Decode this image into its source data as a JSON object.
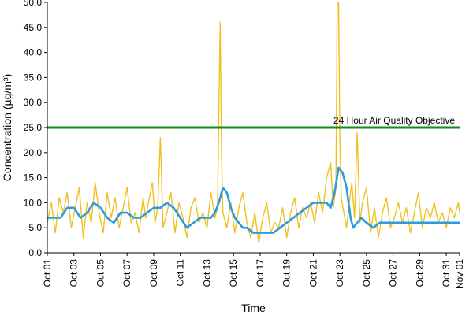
{
  "chart_data": {
    "type": "line",
    "title": "",
    "xlabel": "Time",
    "ylabel": "Concentration (µg/m³)",
    "ylim": [
      0,
      50
    ],
    "yticks": [
      "0.0",
      "5.0",
      "10.0",
      "15.0",
      "20.0",
      "25.0",
      "30.0",
      "35.0",
      "40.0",
      "45.0",
      "50.0"
    ],
    "xlim": [
      "2023-10-01",
      "2023-11-01"
    ],
    "xticks": [
      "Oct 01",
      "Oct 03",
      "Oct 05",
      "Oct 07",
      "Oct 09",
      "Oct 11",
      "Oct 13",
      "Oct 15",
      "Oct 17",
      "Oct 19",
      "Oct 21",
      "Oct 23",
      "Oct 25",
      "Oct 27",
      "Oct 29",
      "Oct 31",
      "Nov 01"
    ],
    "xtick_day_index": [
      0,
      2,
      4,
      6,
      8,
      10,
      12,
      14,
      16,
      18,
      20,
      22,
      24,
      26,
      28,
      30,
      31
    ],
    "grid": false,
    "legend": "none",
    "objective": {
      "label": "24 Hour Air Quality Objective",
      "value": 25,
      "color": "#1a8a1a"
    },
    "series": [
      {
        "color": "#f0c020",
        "x_day": [
          0.0,
          0.3,
          0.6,
          0.9,
          1.2,
          1.5,
          1.8,
          2.1,
          2.4,
          2.7,
          3.0,
          3.3,
          3.6,
          3.9,
          4.2,
          4.5,
          4.8,
          5.1,
          5.4,
          5.7,
          6.0,
          6.3,
          6.6,
          6.9,
          7.2,
          7.4,
          7.6,
          7.9,
          8.1,
          8.3,
          8.5,
          8.7,
          9.0,
          9.3,
          9.6,
          9.9,
          10.2,
          10.5,
          10.8,
          11.1,
          11.4,
          11.7,
          12.0,
          12.3,
          12.6,
          12.8,
          12.9,
          13.0,
          13.1,
          13.2,
          13.5,
          13.8,
          14.1,
          14.4,
          14.7,
          15.0,
          15.3,
          15.6,
          15.9,
          16.2,
          16.5,
          16.8,
          17.1,
          17.4,
          17.7,
          18.0,
          18.3,
          18.6,
          18.9,
          19.2,
          19.5,
          19.8,
          20.1,
          20.4,
          20.7,
          21.0,
          21.3,
          21.5,
          21.7,
          21.8,
          21.9,
          22.0,
          22.1,
          22.3,
          22.5,
          22.7,
          22.9,
          23.1,
          23.3,
          23.5,
          23.7,
          24.0,
          24.3,
          24.6,
          24.9,
          25.2,
          25.5,
          25.8,
          26.1,
          26.4,
          26.7,
          27.0,
          27.3,
          27.6,
          27.9,
          28.2,
          28.5,
          28.8,
          29.1,
          29.4,
          29.7,
          30.0,
          30.3,
          30.6,
          30.9,
          31.0
        ],
        "values": [
          6,
          10,
          4,
          11,
          8,
          12,
          5,
          9,
          13,
          3,
          10,
          6,
          14,
          8,
          4,
          12,
          7,
          11,
          5,
          9,
          13,
          6,
          8,
          4,
          11,
          7,
          10,
          14,
          6,
          9,
          23,
          5,
          8,
          12,
          4,
          10,
          7,
          3,
          9,
          11,
          6,
          8,
          5,
          12,
          7,
          9,
          28,
          46,
          20,
          8,
          5,
          10,
          4,
          9,
          12,
          6,
          3,
          8,
          2,
          7,
          10,
          4,
          6,
          5,
          9,
          3,
          8,
          11,
          5,
          9,
          7,
          10,
          6,
          12,
          8,
          15,
          18,
          9,
          13,
          60,
          50,
          22,
          11,
          8,
          5,
          10,
          14,
          7,
          24,
          6,
          10,
          13,
          4,
          9,
          3,
          8,
          11,
          5,
          7,
          10,
          6,
          9,
          4,
          8,
          12,
          5,
          9,
          7,
          10,
          6,
          8,
          5,
          9,
          7,
          10,
          8
        ]
      },
      {
        "color": "#2a9be0",
        "x_day": [
          0.0,
          0.5,
          1.0,
          1.5,
          2.0,
          2.5,
          3.0,
          3.5,
          4.0,
          4.5,
          5.0,
          5.5,
          6.0,
          6.5,
          7.0,
          7.5,
          8.0,
          8.5,
          9.0,
          9.5,
          10.0,
          10.5,
          11.0,
          11.5,
          12.0,
          12.3,
          12.6,
          12.9,
          13.2,
          13.5,
          13.8,
          14.1,
          14.4,
          14.7,
          15.0,
          15.5,
          16.0,
          16.5,
          17.0,
          17.5,
          18.0,
          18.5,
          19.0,
          19.5,
          20.0,
          20.5,
          21.0,
          21.3,
          21.6,
          21.9,
          22.2,
          22.5,
          22.8,
          23.0,
          23.3,
          23.6,
          24.0,
          24.5,
          25.0,
          25.5,
          26.0,
          26.5,
          27.0,
          27.5,
          28.0,
          28.5,
          29.0,
          29.5,
          30.0,
          30.5,
          31.0
        ],
        "values": [
          7,
          7,
          7,
          9,
          9,
          7,
          8,
          10,
          9,
          7,
          6,
          8,
          8,
          7,
          7,
          8,
          9,
          9,
          10,
          9,
          7,
          5,
          6,
          7,
          7,
          7,
          8,
          10,
          13,
          12,
          9,
          7,
          6,
          5,
          5,
          4,
          4,
          4,
          4,
          5,
          6,
          7,
          8,
          9,
          10,
          10,
          10,
          9,
          12,
          17,
          16,
          13,
          7,
          5,
          6,
          7,
          6,
          5,
          6,
          6,
          6,
          6,
          6,
          6,
          6,
          6,
          6,
          6,
          6,
          6,
          6
        ]
      }
    ]
  }
}
